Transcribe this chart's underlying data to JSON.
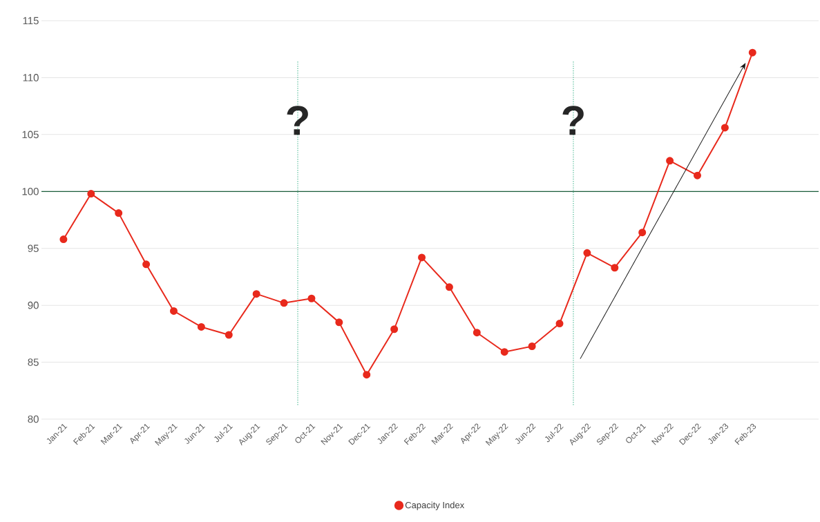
{
  "chart_data": {
    "type": "line",
    "categories": [
      "Jan-21",
      "Feb-21",
      "Mar-21",
      "Apr-21",
      "May-21",
      "Jun-21",
      "Jul-21",
      "Aug-21",
      "Sep-21",
      "Oct-21",
      "Nov-21",
      "Dec-21",
      "Jan-22",
      "Feb-22",
      "Mar-22",
      "Apr-22",
      "May-22",
      "Jun-22",
      "Jul-22",
      "Aug-22",
      "Sep-22",
      "Oct-21",
      "Nov-22",
      "Dec-22",
      "Jan-23",
      "Feb-23"
    ],
    "series": [
      {
        "name": "Capacity Index",
        "color": "#e8291c",
        "values": [
          95.8,
          99.8,
          98.1,
          93.6,
          89.5,
          88.1,
          87.4,
          91.0,
          90.2,
          90.6,
          88.5,
          83.9,
          87.9,
          94.2,
          91.6,
          87.6,
          85.9,
          86.4,
          88.4,
          94.6,
          93.3,
          96.4,
          102.7,
          101.4,
          105.6,
          112.2
        ]
      }
    ],
    "ylim": [
      80,
      115
    ],
    "yticks": [
      80,
      85,
      90,
      95,
      100,
      105,
      110,
      115
    ],
    "grid": "y",
    "legend": "bottom",
    "marker": "circle",
    "line_style": "solid",
    "annotations": [
      "?",
      "?"
    ],
    "ref_lines": [
      {
        "axis": "y",
        "value": 100,
        "color": "#1b5e3b",
        "line_style": "solid"
      }
    ]
  }
}
